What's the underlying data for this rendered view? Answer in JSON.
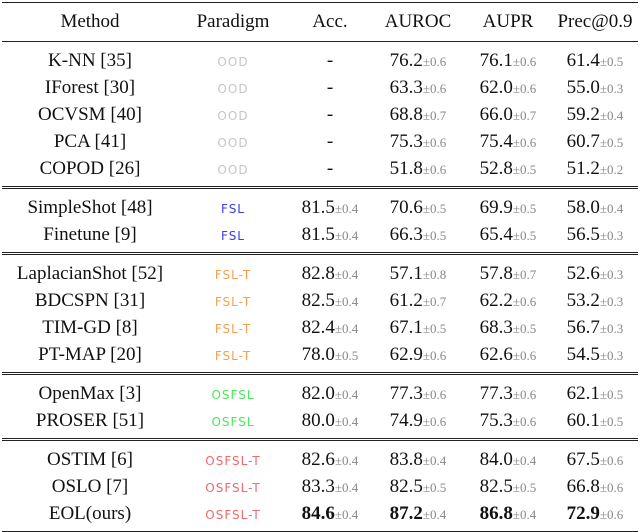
{
  "table": {
    "header": [
      "Method",
      "Paradigm",
      "Acc.",
      "AUROC",
      "AUPR",
      "Prec@0.9"
    ],
    "groups": [
      {
        "rows": [
          [
            "K-NN [35]",
            "OOD",
            "-",
            [
              "76.2",
              "±0.6"
            ],
            [
              "76.1",
              "±0.6"
            ],
            [
              "61.4",
              "±0.5"
            ]
          ],
          [
            "IForest [30]",
            "OOD",
            "-",
            [
              "63.3",
              "±0.6"
            ],
            [
              "62.0",
              "±0.6"
            ],
            [
              "55.0",
              "±0.3"
            ]
          ],
          [
            "OCVSM [40]",
            "OOD",
            "-",
            [
              "68.8",
              "±0.7"
            ],
            [
              "66.0",
              "±0.7"
            ],
            [
              "59.2",
              "±0.4"
            ]
          ],
          [
            "PCA [41]",
            "OOD",
            "-",
            [
              "75.3",
              "±0.6"
            ],
            [
              "75.4",
              "±0.6"
            ],
            [
              "60.7",
              "±0.5"
            ]
          ],
          [
            "COPOD [26]",
            "OOD",
            "-",
            [
              "51.8",
              "±0.6"
            ],
            [
              "52.8",
              "±0.5"
            ],
            [
              "51.2",
              "±0.2"
            ]
          ]
        ]
      },
      {
        "rows": [
          [
            "SimpleShot [48]",
            "FSL",
            [
              "81.5",
              "±0.4"
            ],
            [
              "70.6",
              "±0.5"
            ],
            [
              "69.9",
              "±0.5"
            ],
            [
              "58.0",
              "±0.4"
            ]
          ],
          [
            "Finetune [9]",
            "FSL",
            [
              "81.5",
              "±0.4"
            ],
            [
              "66.3",
              "±0.5"
            ],
            [
              "65.4",
              "±0.5"
            ],
            [
              "56.5",
              "±0.3"
            ]
          ]
        ]
      },
      {
        "rows": [
          [
            "LaplacianShot [52]",
            "FSL-T",
            [
              "82.8",
              "±0.4"
            ],
            [
              "57.1",
              "±0.8"
            ],
            [
              "57.8",
              "±0.7"
            ],
            [
              "52.6",
              "±0.3"
            ]
          ],
          [
            "BDCSPN [31]",
            "FSL-T",
            [
              "82.5",
              "±0.4"
            ],
            [
              "61.2",
              "±0.7"
            ],
            [
              "62.2",
              "±0.6"
            ],
            [
              "53.2",
              "±0.3"
            ]
          ],
          [
            "TIM-GD [8]",
            "FSL-T",
            [
              "82.4",
              "±0.4"
            ],
            [
              "67.1",
              "±0.5"
            ],
            [
              "68.3",
              "±0.5"
            ],
            [
              "56.7",
              "±0.3"
            ]
          ],
          [
            "PT-MAP [20]",
            "FSL-T",
            [
              "78.0",
              "±0.5"
            ],
            [
              "62.9",
              "±0.6"
            ],
            [
              "62.6",
              "±0.6"
            ],
            [
              "54.5",
              "±0.3"
            ]
          ]
        ]
      },
      {
        "rows": [
          [
            "OpenMax [3]",
            "OSFSL",
            [
              "82.0",
              "±0.4"
            ],
            [
              "77.3",
              "±0.6"
            ],
            [
              "77.3",
              "±0.6"
            ],
            [
              "62.1",
              "±0.5"
            ]
          ],
          [
            "PROSER [51]",
            "OSFSL",
            [
              "80.0",
              "±0.4"
            ],
            [
              "74.9",
              "±0.6"
            ],
            [
              "75.3",
              "±0.6"
            ],
            [
              "60.1",
              "±0.5"
            ]
          ]
        ]
      },
      {
        "rows": [
          [
            "OSTIM [6]",
            "OSFSL-T",
            [
              "82.6",
              "±0.4"
            ],
            [
              "83.8",
              "±0.4"
            ],
            [
              "84.0",
              "±0.4"
            ],
            [
              "67.5",
              "±0.6"
            ]
          ],
          [
            "OSLO [7]",
            "OSFSL-T",
            [
              "83.3",
              "±0.4"
            ],
            [
              "82.5",
              "±0.5"
            ],
            [
              "82.5",
              "±0.5"
            ],
            [
              "66.8",
              "±0.6"
            ]
          ],
          [
            "EOL(ours)",
            "OSFSL-T",
            [
              "84.6",
              "±0.4"
            ],
            [
              "87.2",
              "±0.4"
            ],
            [
              "86.8",
              "±0.4"
            ],
            [
              "72.9",
              "±0.6"
            ]
          ]
        ]
      }
    ]
  }
}
